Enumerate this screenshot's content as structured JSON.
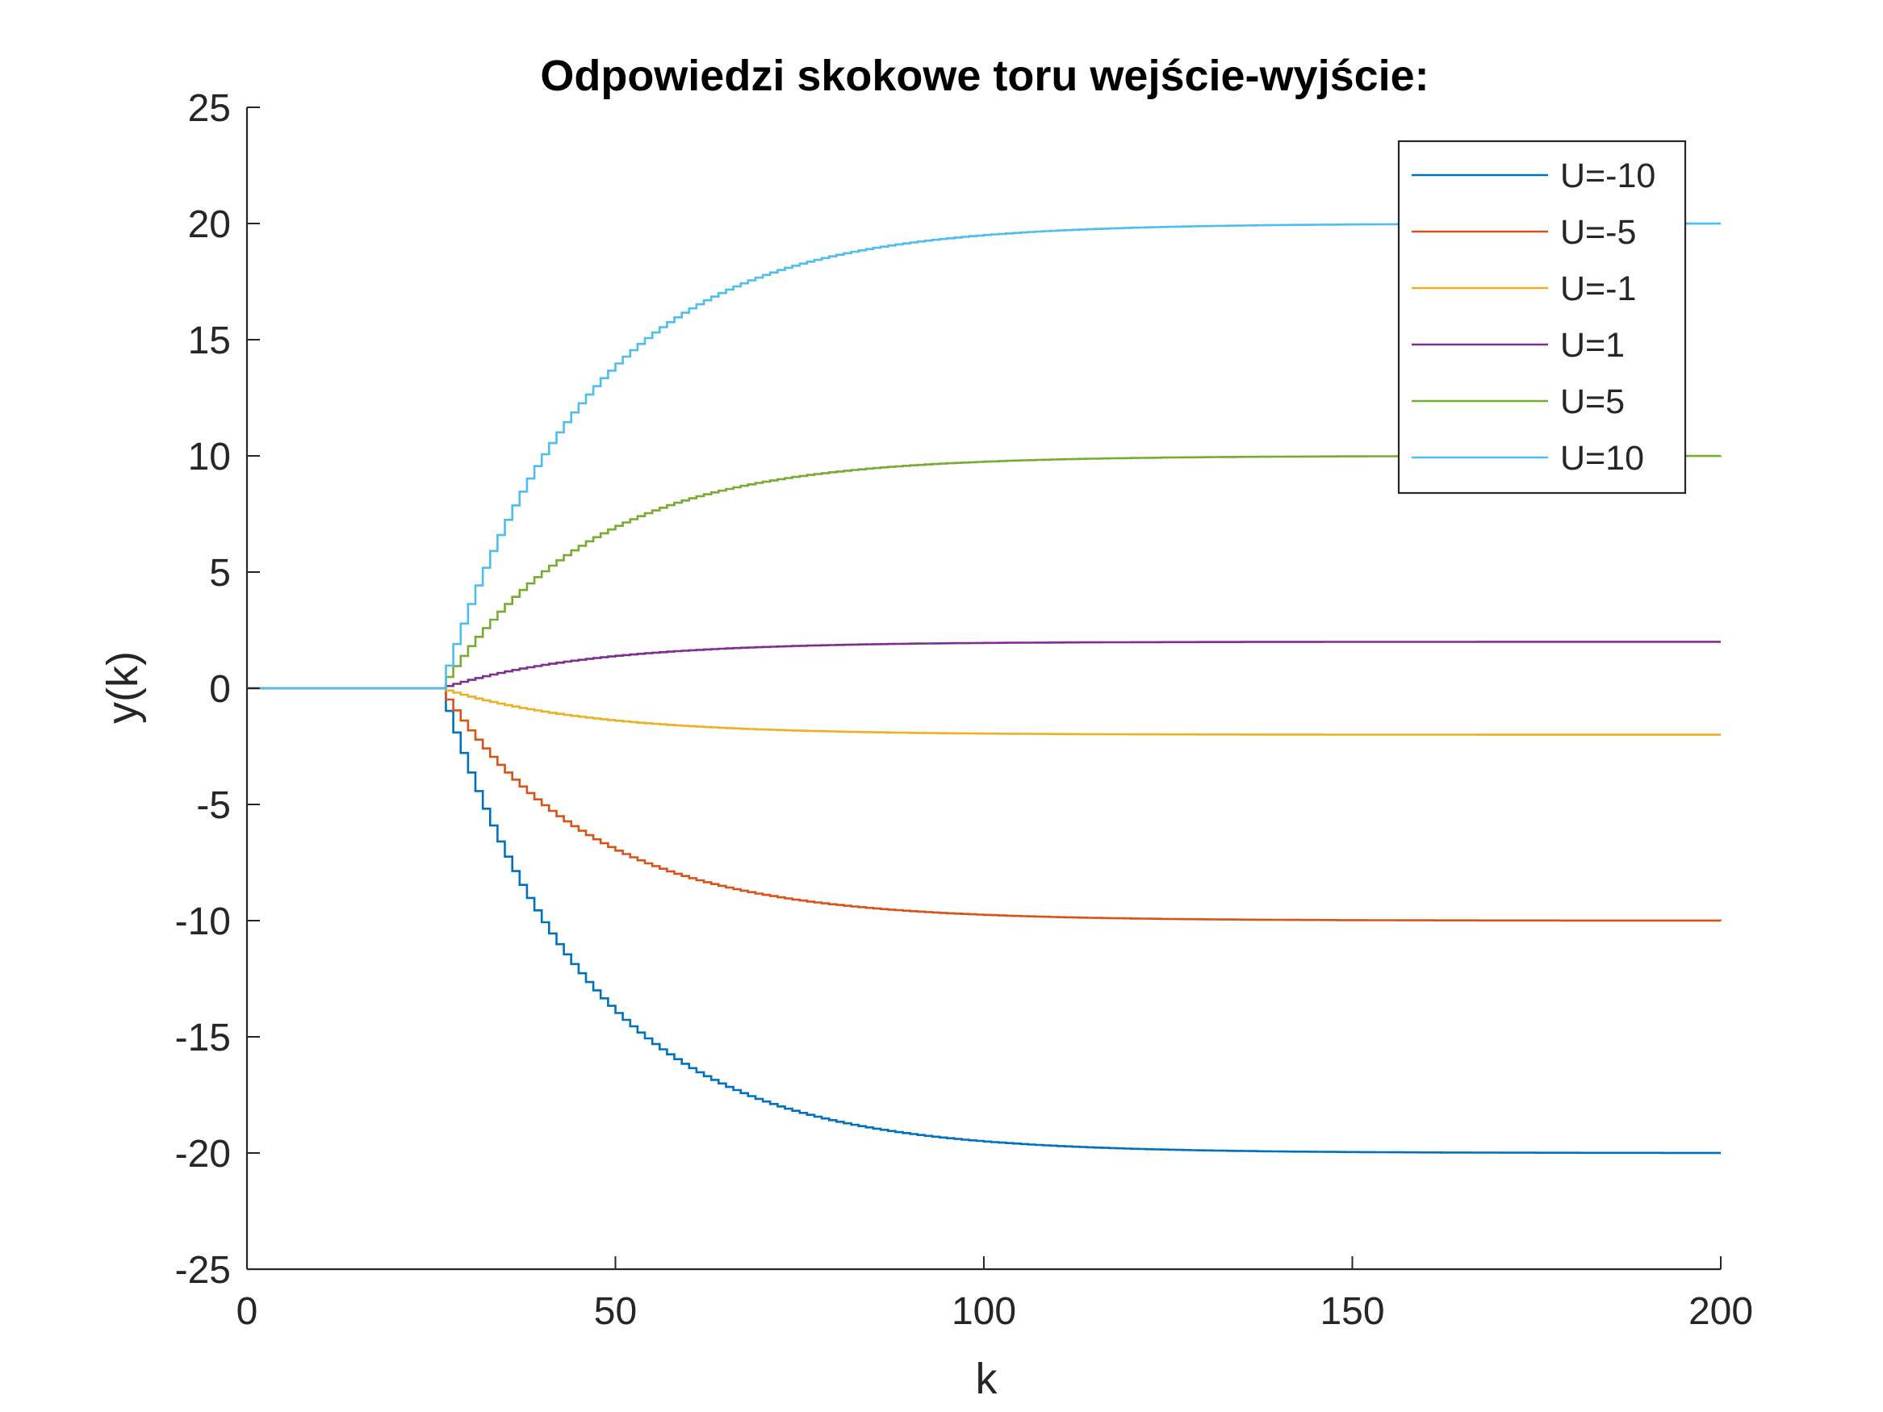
{
  "chart_data": {
    "type": "line",
    "title": "Odpowiedzi skokowe toru wejście-wyjście:",
    "xlabel": "k",
    "ylabel": "y(k)",
    "xlim": [
      0,
      200
    ],
    "ylim": [
      -25,
      25
    ],
    "xticks": [
      "0",
      "50",
      "100",
      "150",
      "200"
    ],
    "yticks": [
      "25",
      "20",
      "15",
      "10",
      "5",
      "0",
      "-5",
      "-10",
      "-15",
      "-20",
      "-25"
    ],
    "grid": false,
    "legend_position": "top-right",
    "step_start_k": 26,
    "time_constant": 20,
    "series": [
      {
        "name": "U=-10",
        "color": "#0072BD",
        "final_value": -20
      },
      {
        "name": "U=-5",
        "color": "#D95319",
        "final_value": -10
      },
      {
        "name": "U=-1",
        "color": "#EDB120",
        "final_value": -2
      },
      {
        "name": "U=1",
        "color": "#7E2F8E",
        "final_value": 2
      },
      {
        "name": "U=5",
        "color": "#77AC30",
        "final_value": 10
      },
      {
        "name": "U=10",
        "color": "#4DBEEE",
        "final_value": 20
      }
    ]
  }
}
